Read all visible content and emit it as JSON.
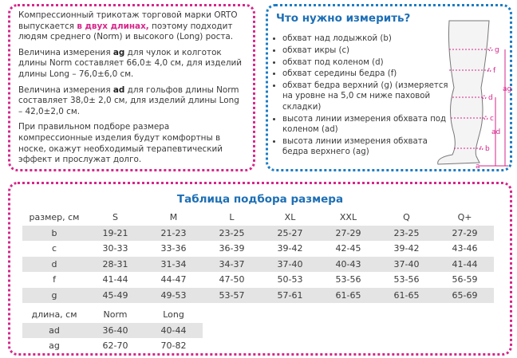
{
  "left": {
    "paragraphs": [
      [
        "Компрессионный трикотаж торговой марки ORTO выпускается ",
        "в двух длинах,",
        " поэтому подходит людям среднего (Norm) и высокого (Long) роста."
      ],
      [
        "Величина измерения ",
        "ag",
        " для чулок и колготок длины Norm составляет 66,0± 4,0 см, для изделий длины Long – 76,0±6,0 см."
      ],
      [
        "Величина измерения ",
        "ad",
        " для гольфов длины Norm составляет 38,0± 2,0 см, для изделий длины Long – 42,0±2,0 см."
      ],
      [
        "При правильном подборе размера компрессионные изделия будут комфортны в носке, окажут необходимый терапевтический эффект и прослужат долго."
      ]
    ]
  },
  "right": {
    "title": "Что нужно измерить?",
    "items": [
      "обхват над лодыжкой (b)",
      "обхват икры (c)",
      "обхват под коленом (d)",
      "обхват середины бедра (f)",
      "обхват бедра верхний (g) (измеряется на уровне на 5,0 см ниже паховой складки)",
      "высота линии измерения обхвата под коленом (ad)",
      "высота линии измерения обхвата бедра верхнего (ag)"
    ],
    "diagram": {
      "labels": [
        "g",
        "f",
        "ag",
        "d",
        "c",
        "ad",
        "b",
        "a"
      ]
    }
  },
  "size_table": {
    "title": "Таблица подбора размера",
    "header": [
      "размер, см",
      "S",
      "M",
      "L",
      "XL",
      "XXL",
      "Q",
      "Q+"
    ],
    "rows": [
      [
        "b",
        "19-21",
        "21-23",
        "23-25",
        "25-27",
        "27-29",
        "23-25",
        "27-29"
      ],
      [
        "c",
        "30-33",
        "33-36",
        "36-39",
        "39-42",
        "42-45",
        "39-42",
        "43-46"
      ],
      [
        "d",
        "28-31",
        "31-34",
        "34-37",
        "37-40",
        "40-43",
        "37-40",
        "41-44"
      ],
      [
        "f",
        "41-44",
        "44-47",
        "47-50",
        "50-53",
        "53-56",
        "53-56",
        "56-59"
      ],
      [
        "g",
        "45-49",
        "49-53",
        "53-57",
        "57-61",
        "61-65",
        "61-65",
        "65-69"
      ]
    ]
  },
  "length_table": {
    "header": [
      "длина, см",
      "Norm",
      "Long"
    ],
    "rows": [
      [
        "ad",
        "36-40",
        "40-44"
      ],
      [
        "ag",
        "62-70",
        "70-82"
      ]
    ]
  }
}
